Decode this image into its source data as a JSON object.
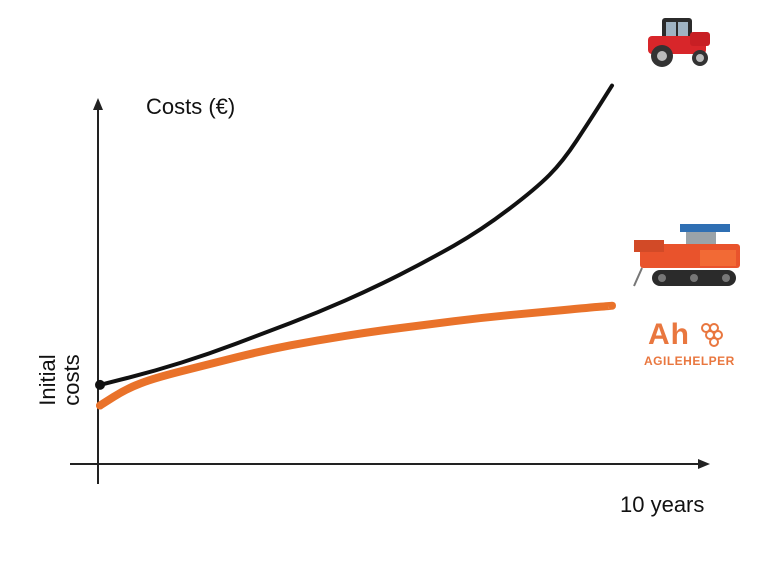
{
  "chart_data": {
    "type": "line",
    "ylabel": "Costs (€)",
    "xlabel": "10 years",
    "initial_label": "Initial costs",
    "x_range": [
      0,
      10
    ],
    "y_range": [
      0,
      100
    ],
    "grid": false,
    "series": [
      {
        "color": "#111111",
        "icon": "tractor-icon",
        "x": [
          0,
          1,
          2,
          3,
          4,
          5,
          6,
          7,
          8,
          8.5,
          9,
          9.4
        ],
        "y": [
          23,
          27,
          32,
          38,
          44,
          51,
          59,
          68,
          80,
          88,
          100,
          110
        ]
      },
      {
        "color": "#e9722a",
        "icon": "autonomous-machine-icon",
        "x": [
          0,
          0.5,
          1,
          2,
          3,
          4,
          5,
          6,
          7,
          8,
          9,
          9.4
        ],
        "y": [
          17,
          22,
          25,
          29,
          33,
          36,
          38.5,
          40.5,
          42.5,
          44,
          45.5,
          46
        ]
      }
    ]
  },
  "logo": {
    "mark": "Ah",
    "name": "AGILEHELPER",
    "color": "#e9773f"
  }
}
